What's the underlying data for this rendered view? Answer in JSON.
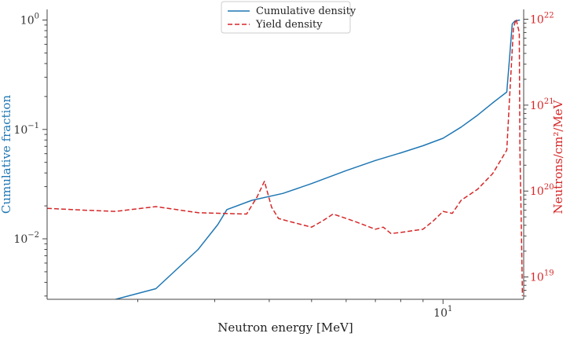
{
  "chart_data": {
    "type": "line",
    "title": "",
    "xlabel": "Neutron energy [MeV]",
    "ylabel_left": "Cumulative fraction",
    "ylabel_right": "Neutrons/cm²/MeV",
    "xscale": "log",
    "xlim": [
      1.24,
      15.3
    ],
    "ylim_left": [
      0.0028,
      1.25
    ],
    "ylim_right": [
      5.5e+18,
      1.3e+22
    ],
    "x_major_ticks": [
      {
        "value": 10,
        "label": "10^1"
      }
    ],
    "y_left_ticks": [
      {
        "value": 1,
        "label": "10^0"
      },
      {
        "value": 0.1,
        "label": "10^-1"
      },
      {
        "value": 0.01,
        "label": "10^-2"
      }
    ],
    "y_right_ticks": [
      {
        "value": 1e+22,
        "label": "10^22"
      },
      {
        "value": 1e+21,
        "label": "10^21"
      },
      {
        "value": 1e+20,
        "label": "10^20"
      },
      {
        "value": 1e+19,
        "label": "10^19"
      }
    ],
    "legend_position": "top-center",
    "colors": {
      "cumulative": "#1f77b4",
      "yield": "#d62728",
      "axis": "#444444"
    },
    "series": [
      {
        "name": "Cumulative density",
        "axis": "left",
        "style": "solid",
        "x": [
          1.78,
          2.2,
          2.75,
          3.05,
          3.2,
          3.65,
          4.3,
          5.0,
          6.0,
          7.0,
          8.0,
          9.0,
          10.0,
          11.0,
          12.0,
          13.0,
          14.0,
          14.2,
          14.4,
          14.6,
          15.0
        ],
        "y": [
          0.0028,
          0.0035,
          0.008,
          0.0135,
          0.0185,
          0.0225,
          0.026,
          0.032,
          0.042,
          0.052,
          0.061,
          0.071,
          0.083,
          0.105,
          0.135,
          0.175,
          0.22,
          0.45,
          0.92,
          0.98,
          1.0
        ]
      },
      {
        "name": "Yield density",
        "axis": "right",
        "style": "dashed",
        "x": [
          1.24,
          1.5,
          1.78,
          2.2,
          2.75,
          3.55,
          3.75,
          3.9,
          4.05,
          4.2,
          4.4,
          5.0,
          5.3,
          5.6,
          6.0,
          6.3,
          7.0,
          7.3,
          7.6,
          8.0,
          9.0,
          9.5,
          10.0,
          10.5,
          11.0,
          12.0,
          13.0,
          14.0,
          14.2,
          14.5,
          14.7,
          14.95,
          15.0,
          15.1,
          15.2
        ],
        "y": [
          6.3e+19,
          6e+19,
          5.8e+19,
          6.6e+19,
          5.6e+19,
          5.4e+19,
          8.5e+19,
          1.3e+20,
          6.5e+19,
          4.8e+19,
          4.5e+19,
          3.8e+19,
          4.5e+19,
          5.4e+19,
          4.8e+19,
          4.4e+19,
          3.6e+19,
          3.8e+19,
          3.2e+19,
          3.3e+19,
          3.6e+19,
          4.5e+19,
          5.8e+19,
          5.5e+19,
          7.8e+19,
          1.05e+20,
          1.6e+20,
          3e+20,
          1.2e+21,
          8e+21,
          1e+22,
          7e+21,
          3e+20,
          5e+19,
          6e+18
        ]
      }
    ]
  }
}
